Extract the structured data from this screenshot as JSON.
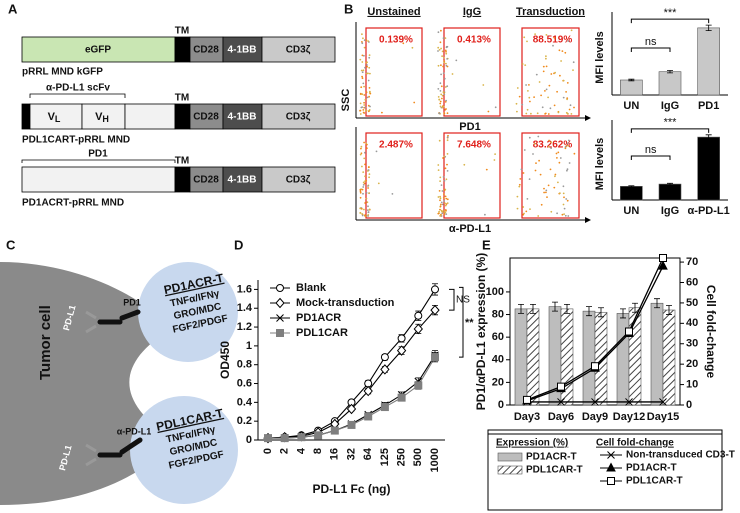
{
  "panel_labels": [
    "A",
    "B",
    "C",
    "D",
    "E"
  ],
  "panel_a": {
    "tm": "TM",
    "egfp": "eGFP",
    "cd28": "CD28",
    "bb": "4-1BB",
    "cd3": "CD3ζ",
    "construct_1": "pRRL MND kGFP",
    "scfv": "α-PD-L1 scFv",
    "vl": [
      "V",
      "L"
    ],
    "vh": [
      "V",
      "H"
    ],
    "construct_2": "PDL1CART-pRRL MND",
    "pd1": "PD1",
    "construct_3": "PD1ACRT-pRRL MND"
  },
  "panel_b_flow": {
    "columns": [
      "Unstained",
      "IgG",
      "Transduction"
    ],
    "y_label": "SSC",
    "rows": [
      {
        "x_label": "PD1",
        "percents": [
          "0.139%",
          "0.413%",
          "88.519%"
        ]
      },
      {
        "x_label": "α-PD-L1",
        "percents": [
          "2.487%",
          "7.648%",
          "83.262%"
        ]
      }
    ]
  },
  "panel_c": {
    "tumor": "Tumor cell",
    "cells": [
      {
        "name": "PD1ACR-T",
        "receptor": "PD1",
        "ligand": "PD-L1",
        "cytokines": [
          "TNFα/IFNγ",
          "GRO/MDC",
          "FGF2/PDGF"
        ]
      },
      {
        "name": "PDL1CAR-T",
        "receptor": "α-PD-L1",
        "ligand": "PD-L1",
        "cytokines": [
          "TNFα/IFNγ",
          "GRO/MDC",
          "FGF2/PDGF"
        ]
      }
    ]
  },
  "chart_data": [
    {
      "type": "bar",
      "y_label": "MFI levels",
      "categories": [
        "UN",
        "IgG",
        "PD1"
      ],
      "values": [
        190,
        295,
        850
      ],
      "errors": [
        10,
        15,
        35
      ],
      "color": "#c8c8c8",
      "ylim": [
        0,
        950
      ],
      "annotations": [
        "ns",
        "***"
      ]
    },
    {
      "type": "bar",
      "y_label": "MFI levels",
      "categories": [
        "UN",
        "IgG",
        "α-PD-L1"
      ],
      "values": [
        180,
        210,
        830
      ],
      "errors": [
        8,
        10,
        30
      ],
      "color": "#000000",
      "ylim": [
        0,
        950
      ],
      "annotations": [
        "ns",
        "***"
      ]
    },
    {
      "type": "line",
      "x_label": "PD-L1 Fc (ng)",
      "y_label": "OD450",
      "categories": [
        "0",
        "2",
        "4",
        "8",
        "16",
        "32",
        "64",
        "125",
        "250",
        "500",
        "1000"
      ],
      "ylim": [
        0,
        1.7
      ],
      "yticks": [
        0,
        0.2,
        0.4,
        0.6,
        0.8,
        1,
        1.2,
        1.4,
        1.6
      ],
      "annotations": [
        "NS",
        "**"
      ],
      "series": [
        {
          "name": "Blank",
          "marker": "circle",
          "color": "#000000",
          "values": [
            0.02,
            0.03,
            0.05,
            0.1,
            0.2,
            0.4,
            0.6,
            0.88,
            1.08,
            1.32,
            1.6
          ],
          "errors": [
            0.01,
            0.01,
            0.01,
            0.02,
            0.02,
            0.02,
            0.03,
            0.03,
            0.04,
            0.05,
            0.06
          ]
        },
        {
          "name": "Mock-transduction",
          "marker": "diamond",
          "color": "#000000",
          "values": [
            0.02,
            0.03,
            0.04,
            0.08,
            0.17,
            0.33,
            0.52,
            0.75,
            0.95,
            1.18,
            1.38
          ],
          "errors": [
            0.01,
            0.01,
            0.01,
            0.02,
            0.02,
            0.02,
            0.03,
            0.03,
            0.04,
            0.05,
            0.05
          ]
        },
        {
          "name": "PD1ACR",
          "marker": "x",
          "color": "#000000",
          "values": [
            0.02,
            0.02,
            0.03,
            0.05,
            0.1,
            0.17,
            0.27,
            0.37,
            0.48,
            0.62,
            0.9
          ],
          "errors": [
            0.01,
            0.01,
            0.01,
            0.01,
            0.02,
            0.02,
            0.02,
            0.03,
            0.03,
            0.04,
            0.05
          ]
        },
        {
          "name": "PDL1CAR",
          "marker": "square",
          "color": "#7f7f7f",
          "values": [
            0.02,
            0.02,
            0.03,
            0.05,
            0.1,
            0.16,
            0.25,
            0.35,
            0.45,
            0.58,
            0.88
          ],
          "errors": [
            0.01,
            0.01,
            0.01,
            0.01,
            0.02,
            0.02,
            0.02,
            0.03,
            0.03,
            0.04,
            0.05
          ]
        }
      ]
    },
    {
      "type": "bar_line",
      "y_label": "PD1/αPD-L1 expression (%)",
      "y2_label": "Cell fold-change",
      "categories": [
        "Day3",
        "Day6",
        "Day9",
        "Day12",
        "Day15"
      ],
      "ylim": [
        0,
        130
      ],
      "yticks": [
        0,
        20,
        40,
        60,
        80,
        100
      ],
      "y2lim": [
        0,
        72
      ],
      "y2ticks": [
        0,
        10,
        20,
        30,
        40,
        50,
        60,
        70
      ],
      "legend_groups": [
        "Expression (%)",
        "Cell fold-change"
      ],
      "series": [
        {
          "name": "PD1ACR-T",
          "kind": "bar",
          "color": "#bdbdbd",
          "values": [
            85,
            87,
            83,
            81,
            90
          ],
          "errors": [
            4,
            4,
            4,
            4,
            4
          ]
        },
        {
          "name": "PDL1CAR-T",
          "kind": "bar",
          "color": "#555555",
          "pattern": "hatch",
          "values": [
            85,
            85,
            82,
            86,
            84
          ],
          "errors": [
            4,
            4,
            4,
            4,
            4
          ]
        },
        {
          "name": "Non-transduced CD3-T",
          "kind": "line",
          "axis": "y2",
          "marker": "x",
          "color": "#000000",
          "values": [
            1.5,
            1.5,
            1.5,
            1.5,
            1.5
          ]
        },
        {
          "name": "PD1ACR-T",
          "kind": "line",
          "axis": "y2",
          "marker": "triangle",
          "color": "#000000",
          "values": [
            2,
            8,
            18,
            35,
            68
          ]
        },
        {
          "name": "PDL1CAR-T",
          "kind": "line",
          "axis": "y2",
          "marker": "opensquare",
          "color": "#000000",
          "values": [
            2.5,
            9,
            19,
            36,
            72
          ]
        }
      ]
    }
  ]
}
